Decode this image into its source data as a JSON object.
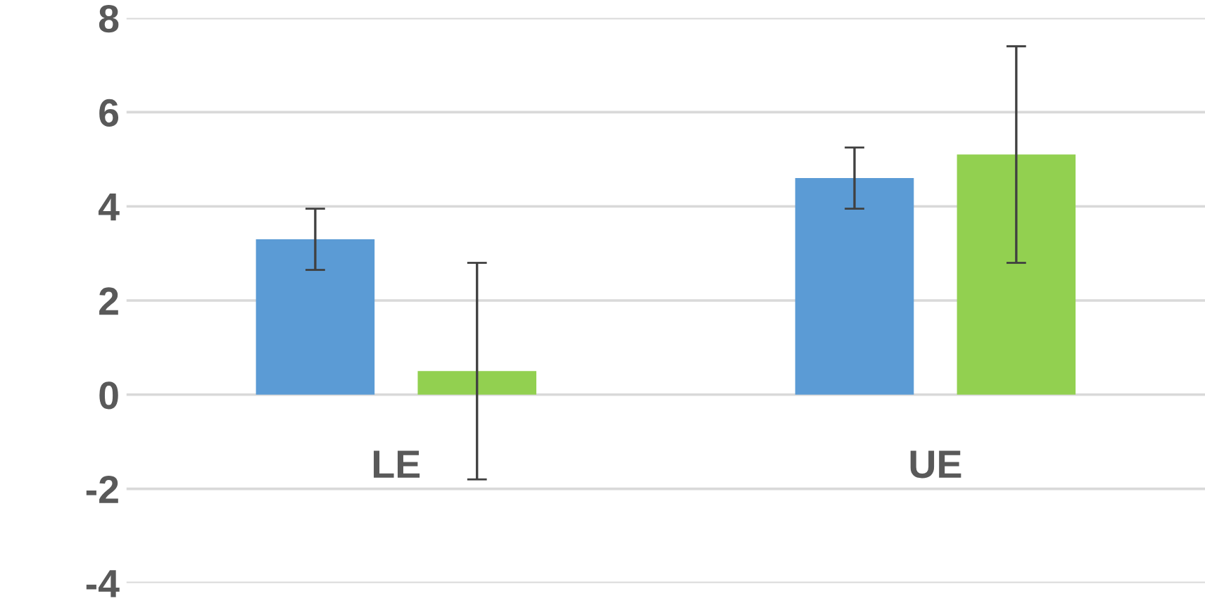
{
  "chart_data": {
    "type": "bar",
    "categories": [
      "LE",
      "UE"
    ],
    "series": [
      {
        "color": "#5b9bd5",
        "values": [
          3.3,
          4.6
        ],
        "errors": [
          0.65,
          0.65
        ]
      },
      {
        "color": "#92d050",
        "values": [
          0.5,
          5.1
        ],
        "errors": [
          2.3,
          2.3
        ]
      }
    ],
    "ylim": [
      -4,
      8
    ],
    "yticks": [
      -4,
      -2,
      0,
      2,
      4,
      6,
      8
    ],
    "grid": "y"
  }
}
